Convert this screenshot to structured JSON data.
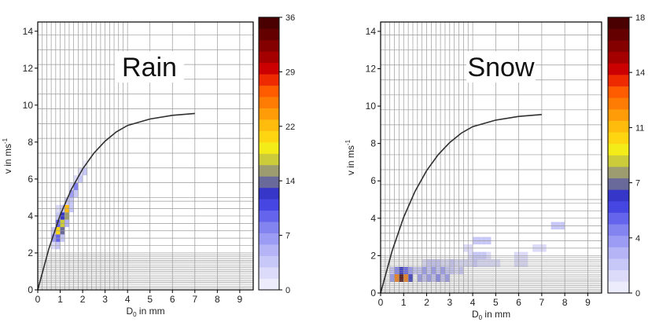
{
  "chart_data": [
    {
      "type": "heatmap",
      "title": "Rain",
      "xlabel_main": "D",
      "xlabel_sub": "0",
      "xlabel_rest": " in mm",
      "ylabel_main": "v in ms",
      "ylabel_sup": "-1",
      "xlim": [
        0,
        9.6
      ],
      "ylim": [
        0,
        14.5
      ],
      "xticks": [
        "0",
        "1",
        "2",
        "3",
        "4",
        "5",
        "6",
        "7",
        "8",
        "9"
      ],
      "yticks": [
        "0",
        "2",
        "4",
        "6",
        "8",
        "10",
        "12",
        "14"
      ],
      "colorbar": {
        "min": 0,
        "max": 36,
        "ticks": [
          "36",
          "29",
          "22",
          "14",
          "7",
          "0"
        ]
      },
      "curve": [
        [
          0,
          0
        ],
        [
          0.5,
          2.25
        ],
        [
          1,
          4.05
        ],
        [
          1.5,
          5.45
        ],
        [
          2,
          6.55
        ],
        [
          2.5,
          7.4
        ],
        [
          3,
          8.05
        ],
        [
          3.5,
          8.55
        ],
        [
          4,
          8.9
        ],
        [
          5,
          9.25
        ],
        [
          6,
          9.45
        ],
        [
          7,
          9.55
        ]
      ],
      "cells": [
        [
          0.6,
          2.2,
          2
        ],
        [
          0.6,
          2.6,
          6
        ],
        [
          0.6,
          3.0,
          4
        ],
        [
          0.8,
          2.2,
          4
        ],
        [
          0.8,
          2.6,
          10
        ],
        [
          0.8,
          3.0,
          20
        ],
        [
          0.8,
          3.4,
          9
        ],
        [
          0.8,
          3.8,
          4
        ],
        [
          0.8,
          4.2,
          2
        ],
        [
          1.0,
          2.6,
          3
        ],
        [
          1.0,
          3.0,
          14
        ],
        [
          1.0,
          3.4,
          17
        ],
        [
          1.0,
          3.8,
          12
        ],
        [
          1.0,
          4.2,
          4
        ],
        [
          1.2,
          3.4,
          5
        ],
        [
          1.2,
          3.8,
          16
        ],
        [
          1.2,
          4.2,
          22
        ],
        [
          1.2,
          4.6,
          3
        ],
        [
          1.4,
          4.2,
          4
        ],
        [
          1.4,
          4.6,
          3
        ],
        [
          1.4,
          5.0,
          6
        ],
        [
          1.4,
          5.4,
          2
        ],
        [
          1.6,
          5.0,
          3
        ],
        [
          1.6,
          5.4,
          8
        ],
        [
          1.6,
          5.8,
          2
        ],
        [
          1.8,
          5.8,
          3
        ],
        [
          1.8,
          6.2,
          2
        ],
        [
          2.0,
          6.2,
          3
        ],
        [
          2.0,
          6.6,
          1
        ]
      ]
    },
    {
      "type": "heatmap",
      "title": "Snow",
      "xlabel_main": "D",
      "xlabel_sub": "0",
      "xlabel_rest": " in mm",
      "ylabel_main": "v in ms",
      "ylabel_sup": "-1",
      "xlim": [
        0,
        9.6
      ],
      "ylim": [
        0,
        14.5
      ],
      "xticks": [
        "0",
        "1",
        "2",
        "3",
        "4",
        "5",
        "6",
        "7",
        "8",
        "9"
      ],
      "yticks": [
        "0",
        "2",
        "4",
        "6",
        "8",
        "10",
        "12",
        "14"
      ],
      "colorbar": {
        "min": 0,
        "max": 18,
        "ticks": [
          "18",
          "14",
          "11",
          "7",
          "4",
          "0"
        ]
      },
      "curve": [
        [
          0,
          0
        ],
        [
          0.5,
          2.25
        ],
        [
          1,
          4.05
        ],
        [
          1.5,
          5.45
        ],
        [
          2,
          6.55
        ],
        [
          2.5,
          7.4
        ],
        [
          3,
          8.05
        ],
        [
          3.5,
          8.55
        ],
        [
          4,
          8.9
        ],
        [
          5,
          9.25
        ],
        [
          6,
          9.45
        ],
        [
          7,
          9.55
        ]
      ],
      "cells": [
        [
          0.4,
          0.6,
          3
        ],
        [
          0.6,
          0.6,
          12
        ],
        [
          0.8,
          0.6,
          18
        ],
        [
          1.0,
          0.6,
          12
        ],
        [
          1.2,
          0.6,
          6
        ],
        [
          0.4,
          1.0,
          2
        ],
        [
          0.6,
          1.0,
          4
        ],
        [
          0.8,
          1.0,
          6
        ],
        [
          1.0,
          1.0,
          5
        ],
        [
          1.2,
          1.0,
          3
        ],
        [
          1.4,
          1.0,
          2
        ],
        [
          1.6,
          0.6,
          3
        ],
        [
          1.8,
          0.6,
          2
        ],
        [
          2.0,
          0.6,
          3
        ],
        [
          2.2,
          0.6,
          2
        ],
        [
          2.4,
          0.6,
          4
        ],
        [
          2.6,
          0.6,
          2
        ],
        [
          2.8,
          0.6,
          3
        ],
        [
          1.6,
          1.0,
          2
        ],
        [
          1.8,
          1.0,
          3
        ],
        [
          2.0,
          1.0,
          2
        ],
        [
          2.2,
          1.0,
          3
        ],
        [
          2.4,
          1.0,
          2
        ],
        [
          2.6,
          1.0,
          3
        ],
        [
          2.8,
          1.0,
          2
        ],
        [
          1.8,
          1.4,
          1
        ],
        [
          2.0,
          1.4,
          2
        ],
        [
          2.2,
          1.4,
          2
        ],
        [
          2.4,
          1.4,
          2
        ],
        [
          2.6,
          1.4,
          1
        ],
        [
          2.8,
          1.4,
          1
        ],
        [
          3.0,
          1.0,
          2
        ],
        [
          3.2,
          1.0,
          1
        ],
        [
          3.4,
          1.0,
          2
        ],
        [
          3.0,
          1.4,
          2
        ],
        [
          3.2,
          1.4,
          1
        ],
        [
          3.4,
          1.4,
          1
        ],
        [
          3.6,
          1.4,
          1
        ],
        [
          3.8,
          1.4,
          1
        ],
        [
          4.0,
          1.4,
          2
        ],
        [
          4.2,
          1.4,
          1
        ],
        [
          4.4,
          1.4,
          1
        ],
        [
          4.6,
          1.4,
          1
        ],
        [
          4.8,
          1.4,
          1
        ],
        [
          5.0,
          1.4,
          1
        ],
        [
          3.8,
          1.8,
          1
        ],
        [
          4.0,
          1.8,
          2
        ],
        [
          4.2,
          1.8,
          2
        ],
        [
          4.4,
          1.8,
          2
        ],
        [
          4.6,
          1.8,
          1
        ],
        [
          4.0,
          2.6,
          2
        ],
        [
          4.2,
          2.6,
          2
        ],
        [
          4.4,
          2.6,
          2
        ],
        [
          4.6,
          2.6,
          2
        ],
        [
          3.6,
          2.2,
          1
        ],
        [
          3.8,
          2.2,
          1
        ],
        [
          5.8,
          1.4,
          1
        ],
        [
          6.0,
          1.4,
          1
        ],
        [
          6.2,
          1.4,
          1
        ],
        [
          5.8,
          1.8,
          1
        ],
        [
          6.0,
          1.8,
          1
        ],
        [
          6.2,
          1.8,
          1
        ],
        [
          6.6,
          2.2,
          1
        ],
        [
          6.8,
          2.2,
          1
        ],
        [
          7.0,
          2.2,
          1
        ],
        [
          7.4,
          3.4,
          2
        ],
        [
          7.6,
          3.4,
          2
        ],
        [
          7.8,
          3.4,
          2
        ]
      ]
    }
  ]
}
